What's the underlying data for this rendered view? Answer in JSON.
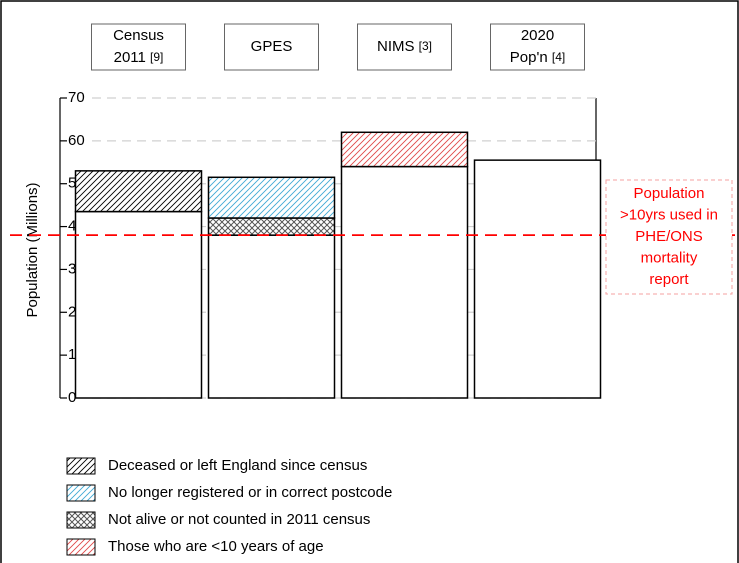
{
  "chart_data": {
    "type": "stacked_bar",
    "categories": [
      "Census 2011",
      "GPES",
      "NIMS",
      "2020 Pop'n"
    ],
    "category_refs": [
      "[9]",
      null,
      "[3]",
      "[4]"
    ],
    "y_label": "Population (Millions)",
    "ylim": [
      0,
      70
    ],
    "yticks": [
      0,
      10,
      20,
      30,
      40,
      50,
      60,
      70
    ],
    "grid": true,
    "series": [
      {
        "color": "#ffffff",
        "hatch": "none",
        "values": [
          43.5,
          38,
          54,
          55.5
        ]
      },
      {
        "name": "Not alive or not counted in 2011 census",
        "color": "#555555",
        "hatch": "x",
        "values": [
          0,
          4,
          0,
          0
        ]
      },
      {
        "name": "Deceased or left England since census",
        "color": "#000000",
        "hatch": "/",
        "values": [
          9.5,
          0,
          0,
          0
        ]
      },
      {
        "name": "No longer registered or in correct postcode",
        "color": "#3fa9d6",
        "hatch": "/",
        "values": [
          0,
          9.5,
          0,
          0
        ]
      },
      {
        "name": "Those who are <10 years of age",
        "color": "#e04848",
        "hatch": "/",
        "values": [
          0,
          0,
          8,
          0
        ]
      }
    ],
    "legend_order": [
      2,
      3,
      1,
      4
    ],
    "reference_line": {
      "value": 38,
      "color": "#ff0000"
    },
    "annotation": {
      "lines": [
        "Population",
        ">10yrs used in",
        "PHE/ONS",
        "mortality",
        "report"
      ],
      "color": "#ff0000"
    }
  }
}
